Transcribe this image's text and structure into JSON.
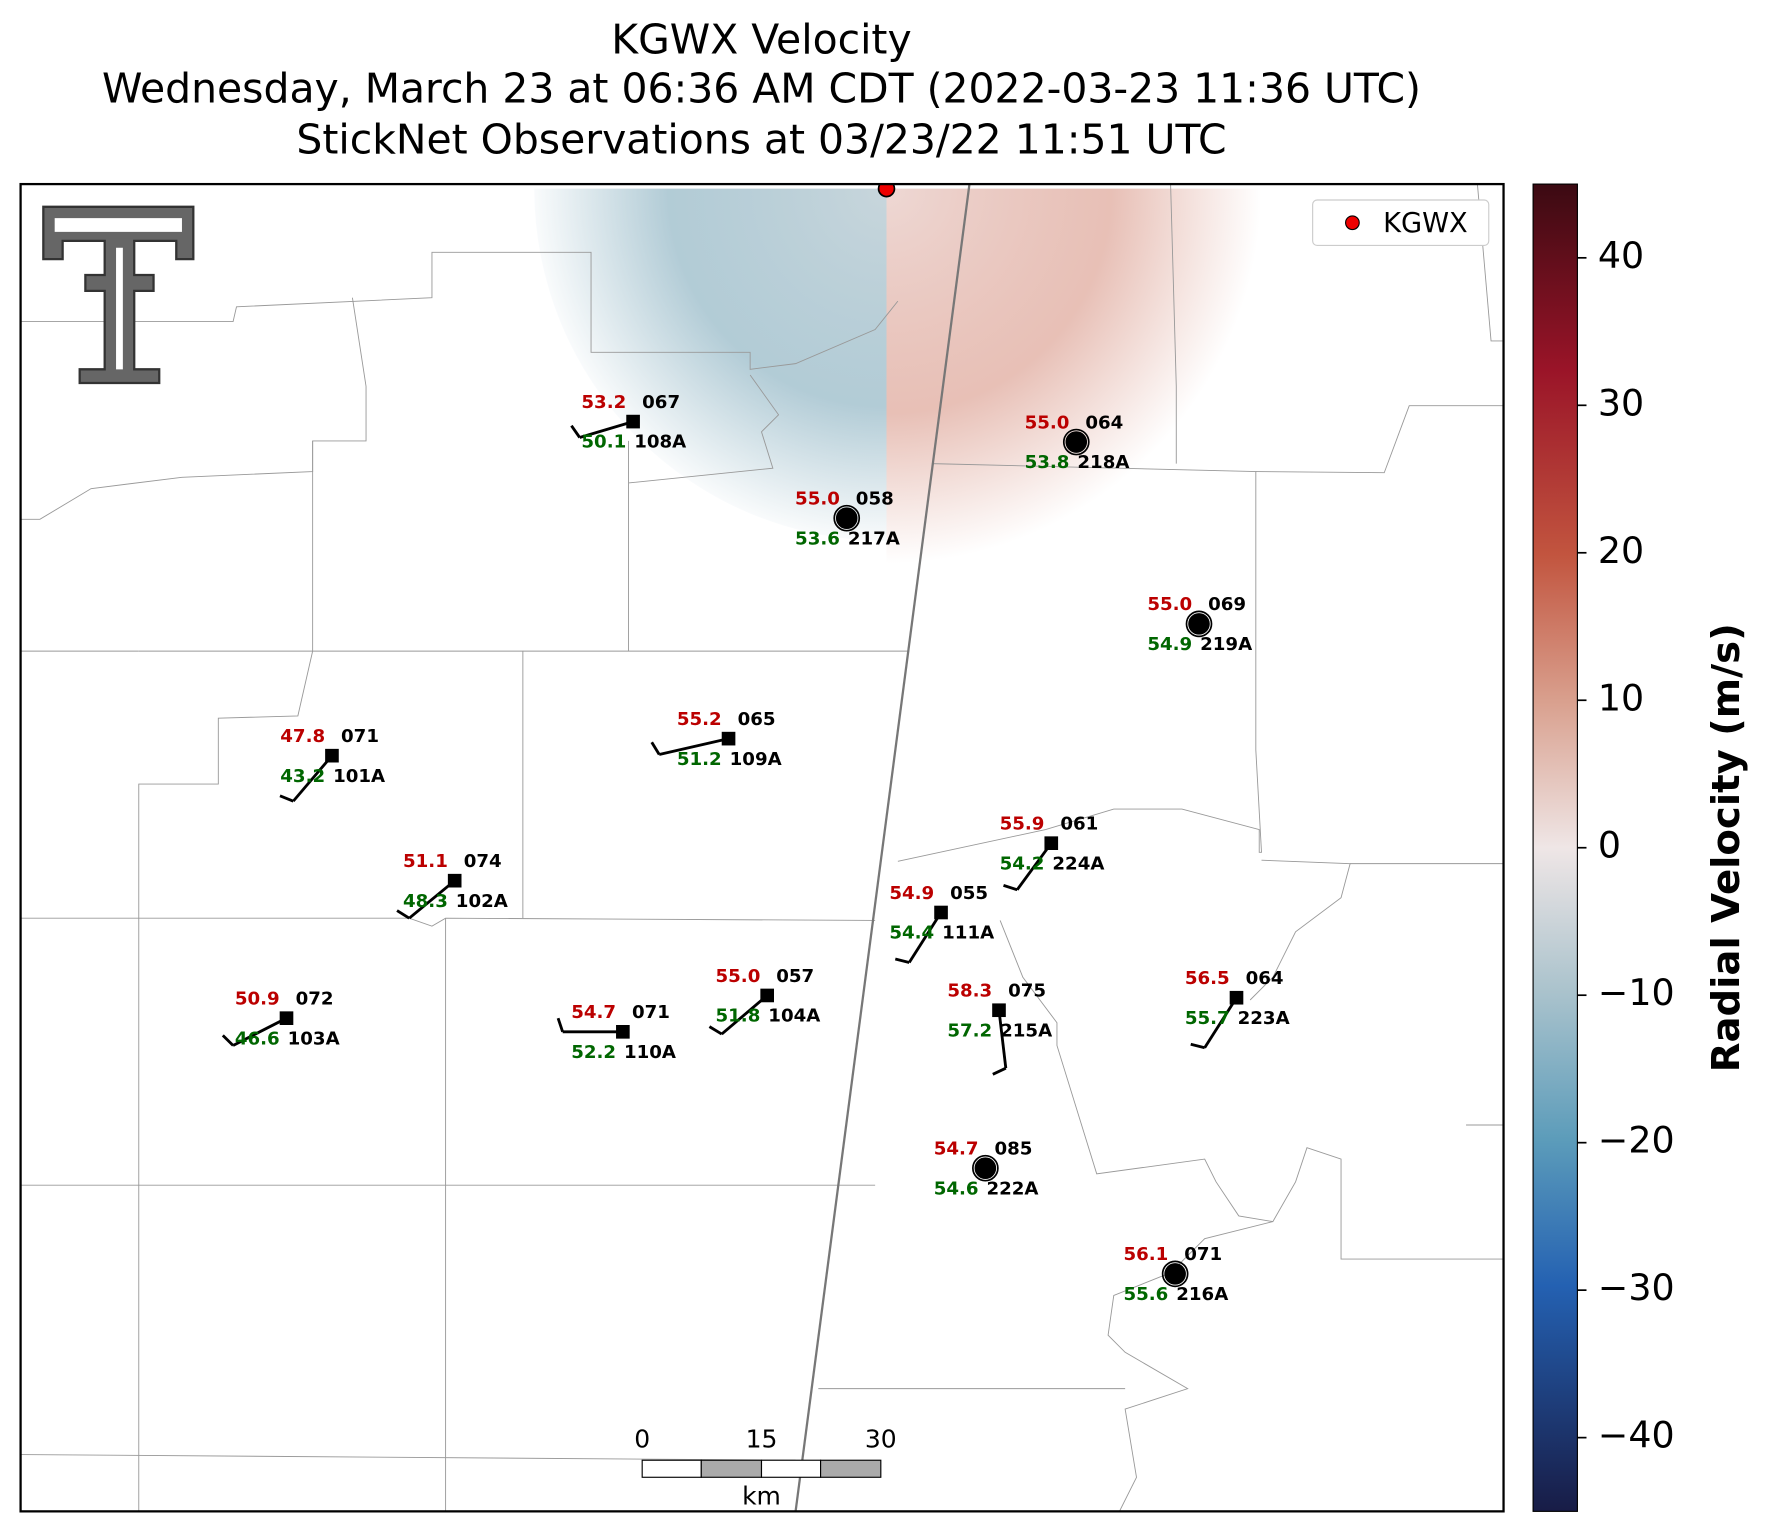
{
  "title": [
    "KGWX Velocity",
    "Wednesday, March 23 at 06:36 AM CDT (2022-03-23 11:36 UTC)",
    "StickNet Observations at 03/23/22 11:51 UTC"
  ],
  "legend": "KGWX",
  "colorbar": {
    "label": "Radial Velocity (m/s)",
    "lim": [
      -45,
      45
    ],
    "ticks": [
      {
        "value": -40,
        "label": "−40"
      },
      {
        "value": -30,
        "label": "−30"
      },
      {
        "value": -20,
        "label": "−20"
      },
      {
        "value": -10,
        "label": "−10"
      },
      0,
      10,
      20,
      30,
      40
    ]
  },
  "scalebar": {
    "ticks": [
      0,
      15,
      30
    ],
    "unit": "km"
  },
  "stations": [
    {
      "id": "108A",
      "temp": "53.2",
      "value": "067",
      "dewpoint": "50.1"
    },
    {
      "id": "217A",
      "temp": "55.0",
      "value": "058",
      "dewpoint": "53.6"
    },
    {
      "id": "218A",
      "temp": "55.0",
      "value": "064",
      "dewpoint": "53.8"
    },
    {
      "id": "219A",
      "temp": "55.0",
      "value": "069",
      "dewpoint": "54.9"
    },
    {
      "id": "109A",
      "temp": "55.2",
      "value": "065",
      "dewpoint": "51.2"
    },
    {
      "id": "101A",
      "temp": "47.8",
      "value": "071",
      "dewpoint": "43.2"
    },
    {
      "id": "102A",
      "temp": "51.1",
      "value": "074",
      "dewpoint": "48.3"
    },
    {
      "id": "224A",
      "temp": "55.9",
      "value": "061",
      "dewpoint": "54.2"
    },
    {
      "id": "111A",
      "temp": "54.9",
      "value": "055",
      "dewpoint": "54.4"
    },
    {
      "id": "103A",
      "temp": "50.9",
      "value": "072",
      "dewpoint": "46.6"
    },
    {
      "id": "110A",
      "temp": "54.7",
      "value": "071",
      "dewpoint": "52.2"
    },
    {
      "id": "104A",
      "temp": "55.0",
      "value": "057",
      "dewpoint": "51.8"
    },
    {
      "id": "215A",
      "temp": "58.3",
      "value": "075",
      "dewpoint": "57.2"
    },
    {
      "id": "223A",
      "temp": "56.5",
      "value": "064",
      "dewpoint": "55.7"
    },
    {
      "id": "222A",
      "temp": "54.7",
      "value": "085",
      "dewpoint": "54.6"
    },
    {
      "id": "216A",
      "temp": "56.1",
      "value": "071",
      "dewpoint": "55.6"
    }
  ]
}
